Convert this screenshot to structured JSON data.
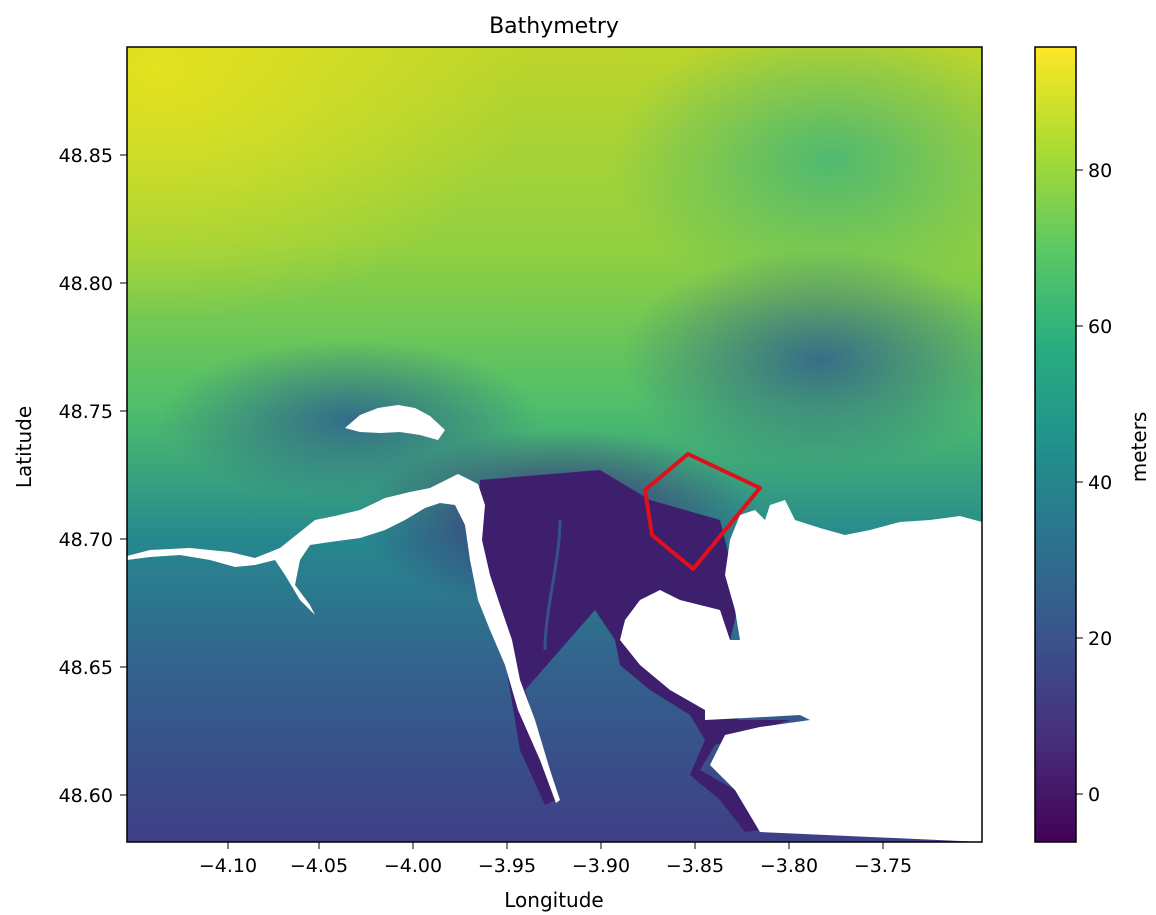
{
  "title": "Bathymetry",
  "xlabel": "Longitude",
  "ylabel": "Latitude",
  "colorbar_label": "meters",
  "colormap": "viridis",
  "colormap_stops": [
    "#440154",
    "#472d7b",
    "#3b528b",
    "#2c728e",
    "#21918c",
    "#28ae80",
    "#5ec962",
    "#addc30",
    "#fde725"
  ],
  "outline_color": "#e0101a",
  "x_ticks": [
    "−4.10",
    "−4.05",
    "−4.00",
    "−3.95",
    "−3.90",
    "−3.85",
    "−3.80",
    "−3.75"
  ],
  "y_ticks": [
    "48.85",
    "48.80",
    "48.75",
    "48.70",
    "48.65",
    "48.60"
  ],
  "colorbar_ticks": [
    "80",
    "60",
    "40",
    "20",
    "0"
  ],
  "chart_data": {
    "type": "heatmap",
    "title": "Bathymetry",
    "xlabel": "Longitude",
    "ylabel": "Latitude",
    "xlim": [
      -4.148,
      -3.727
    ],
    "ylim": [
      48.581,
      48.891
    ],
    "x_ticks": [
      -4.1,
      -4.05,
      -4.0,
      -3.95,
      -3.9,
      -3.85,
      -3.8,
      -3.75
    ],
    "y_ticks": [
      48.6,
      48.65,
      48.7,
      48.75,
      48.8,
      48.85
    ],
    "colorbar": {
      "label": "meters",
      "range": [
        -6,
        96
      ],
      "ticks": [
        0,
        20,
        40,
        60,
        80
      ],
      "colormap": "viridis"
    },
    "land_color": "#ffffff",
    "highlight_polygon": {
      "color": "#e0101a",
      "vertices_lon_lat": [
        [
          -3.87,
          48.733
        ],
        [
          -3.835,
          48.719
        ],
        [
          -3.868,
          48.688
        ],
        [
          -3.888,
          48.702
        ],
        [
          -3.891,
          48.718
        ],
        [
          -3.87,
          48.733
        ]
      ]
    }
  }
}
